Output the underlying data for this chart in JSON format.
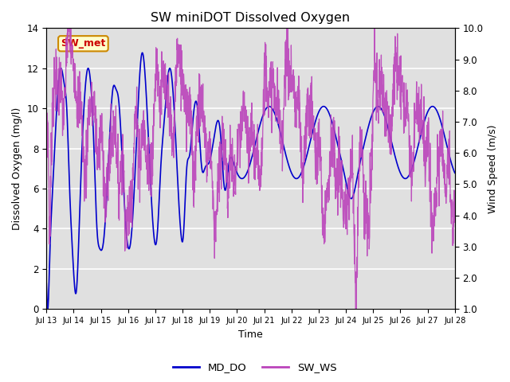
{
  "title": "SW miniDOT Dissolved Oxygen",
  "xlabel": "Time",
  "ylabel_left": "Dissolved Oxygen (mg/l)",
  "ylabel_right": "Wind Speed (m/s)",
  "annotation_text": "SW_met",
  "annotation_bg": "#FFFFCC",
  "annotation_edge": "#CC8800",
  "annotation_color": "#CC0000",
  "left_ylim": [
    0,
    14
  ],
  "right_ylim": [
    1.0,
    10.0
  ],
  "left_yticks": [
    0,
    2,
    4,
    6,
    8,
    10,
    12,
    14
  ],
  "right_yticks": [
    1.0,
    2.0,
    3.0,
    4.0,
    5.0,
    6.0,
    7.0,
    8.0,
    9.0,
    10.0
  ],
  "xtick_labels": [
    "Jul 13",
    "Jul 14",
    "Jul 15",
    "Jul 16",
    "Jul 17",
    "Jul 18",
    "Jul 19",
    "Jul 20",
    "Jul 21",
    "Jul 22",
    "Jul 23",
    "Jul 24",
    "Jul 25",
    "Jul 26",
    "Jul 27",
    "Jul 28"
  ],
  "color_DO": "#0000CC",
  "color_WS": "#BB44BB",
  "legend_labels": [
    "MD_DO",
    "SW_WS"
  ],
  "bg_color": "#E0E0E0",
  "grid_color": "#FFFFFF",
  "fig_bg": "#FFFFFF",
  "xstart": 13,
  "xend": 28
}
